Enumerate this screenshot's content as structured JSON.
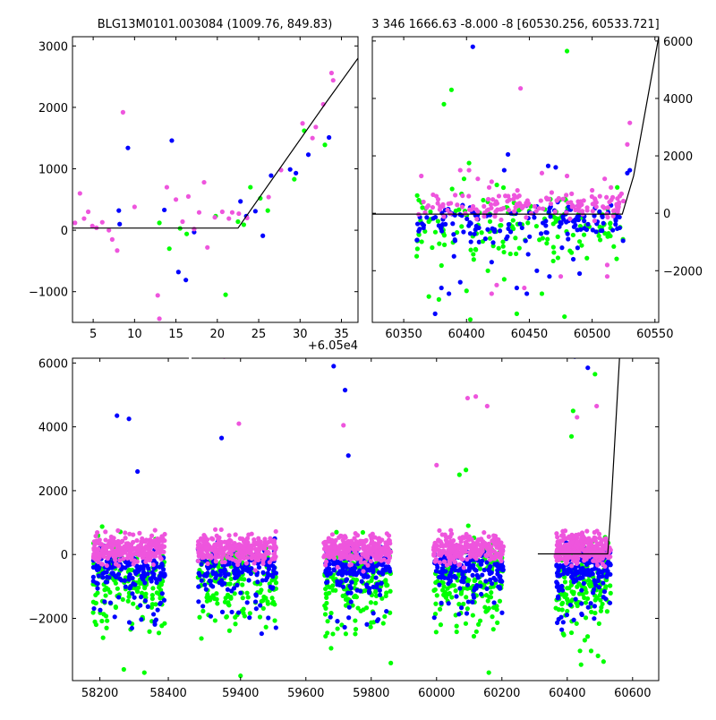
{
  "figure": {
    "title_left": "BLG13M0101.003084 (1009.76, 849.83)",
    "title_right": "3 346 1666.63 -8.000 -8 [60530.256, 60533.721]",
    "offset_label": "+6.05e4"
  },
  "colors": {
    "green": "#00ff00",
    "blue": "#0000ff",
    "magenta": "#ee55dd",
    "model_line": "#000000",
    "frame": "#000000"
  },
  "chart_data": [
    {
      "type": "scatter",
      "id": "zoom",
      "title": "BLG13M0101.003084 (1009.76, 849.83)",
      "x_offset": 60500,
      "xlim": [
        2.5,
        37
      ],
      "ylim": [
        -1500,
        3150
      ],
      "xticks": [
        5,
        10,
        15,
        20,
        25,
        30,
        35
      ],
      "yticks": [
        -1000,
        0,
        1000,
        2000,
        3000
      ],
      "series": [
        {
          "color": "green",
          "points": [
            [
              13.0,
              120
            ],
            [
              14.2,
              -300
            ],
            [
              15.5,
              30
            ],
            [
              16.3,
              -60
            ],
            [
              19.8,
              230
            ],
            [
              21.0,
              -1050
            ],
            [
              22.5,
              140
            ],
            [
              23.2,
              90
            ],
            [
              24.0,
              700
            ],
            [
              25.2,
              520
            ],
            [
              26.1,
              320
            ],
            [
              29.3,
              830
            ],
            [
              30.5,
              1620
            ],
            [
              33.0,
              1390
            ]
          ]
        },
        {
          "color": "blue",
          "points": [
            [
              8.1,
              320
            ],
            [
              8.2,
              100
            ],
            [
              9.2,
              1340
            ],
            [
              13.6,
              330
            ],
            [
              14.5,
              1460
            ],
            [
              15.3,
              -680
            ],
            [
              16.2,
              -810
            ],
            [
              17.2,
              -30
            ],
            [
              22.8,
              470
            ],
            [
              23.5,
              230
            ],
            [
              24.6,
              310
            ],
            [
              25.5,
              -90
            ],
            [
              26.5,
              890
            ],
            [
              28.8,
              990
            ],
            [
              29.5,
              930
            ],
            [
              31.0,
              1230
            ],
            [
              33.5,
              1510
            ]
          ]
        },
        {
          "color": "magenta",
          "points": [
            [
              2.8,
              120
            ],
            [
              3.4,
              600
            ],
            [
              3.9,
              190
            ],
            [
              4.4,
              300
            ],
            [
              4.9,
              70
            ],
            [
              5.4,
              40
            ],
            [
              6.1,
              130
            ],
            [
              6.9,
              0
            ],
            [
              7.3,
              -150
            ],
            [
              7.9,
              -330
            ],
            [
              8.6,
              1920
            ],
            [
              10.0,
              380
            ],
            [
              12.8,
              -1060
            ],
            [
              13.0,
              -1440
            ],
            [
              13.9,
              700
            ],
            [
              15.0,
              500
            ],
            [
              15.8,
              140
            ],
            [
              16.5,
              550
            ],
            [
              17.2,
              20
            ],
            [
              17.8,
              290
            ],
            [
              18.4,
              780
            ],
            [
              18.8,
              -280
            ],
            [
              19.7,
              210
            ],
            [
              20.6,
              300
            ],
            [
              21.4,
              190
            ],
            [
              21.8,
              290
            ],
            [
              22.6,
              270
            ],
            [
              23.6,
              200
            ],
            [
              26.2,
              540
            ],
            [
              27.7,
              980
            ],
            [
              30.3,
              1740
            ],
            [
              31.5,
              1500
            ],
            [
              31.9,
              1680
            ],
            [
              32.8,
              2050
            ],
            [
              33.8,
              2560
            ],
            [
              34.0,
              2440
            ]
          ]
        }
      ],
      "model": [
        [
          2.5,
          35
        ],
        [
          22.5,
          35
        ],
        [
          33.2,
          2090
        ],
        [
          37,
          2800
        ]
      ]
    },
    {
      "type": "scatter",
      "id": "season",
      "title": "3 346 1666.63 -8.000 -8 [60530.256, 60533.721]",
      "xlim": [
        60325,
        60553
      ],
      "ylim": [
        -3800,
        6150
      ],
      "xticks": [
        60350,
        60400,
        60450,
        60500,
        60550
      ],
      "yticks": [
        -2000,
        0,
        2000,
        4000,
        6000
      ],
      "series": [
        {
          "color": "green",
          "points": [
            [
              60382,
              3800
            ],
            [
              60388,
              4300
            ],
            [
              60398,
              1200
            ],
            [
              60402,
              1750
            ],
            [
              60405,
              -800
            ],
            [
              60370,
              -2900
            ],
            [
              60378,
              -3000
            ],
            [
              60400,
              -2700
            ],
            [
              60403,
              -3700
            ],
            [
              60440,
              -3500
            ],
            [
              60478,
              -3600
            ],
            [
              60480,
              5650
            ],
            [
              60417,
              -2000
            ],
            [
              60430,
              -2300
            ],
            [
              60460,
              -2800
            ]
          ]
        },
        {
          "color": "blue",
          "points": [
            [
              60405,
              5800
            ],
            [
              60430,
              1500
            ],
            [
              60433,
              2050
            ],
            [
              60465,
              1650
            ],
            [
              60471,
              1600
            ],
            [
              60375,
              -3500
            ],
            [
              60380,
              -2600
            ],
            [
              60386,
              -2800
            ],
            [
              60390,
              -1500
            ],
            [
              60395,
              -2400
            ],
            [
              60410,
              -1000
            ],
            [
              60420,
              -1700
            ],
            [
              60440,
              -2600
            ],
            [
              60448,
              -2800
            ],
            [
              60456,
              -2000
            ],
            [
              60466,
              -2200
            ],
            [
              60476,
              -1200
            ],
            [
              60485,
              -1600
            ],
            [
              60490,
              -2100
            ],
            [
              60528,
              1400
            ],
            [
              60530,
              1500
            ]
          ]
        },
        {
          "color": "magenta",
          "points": [
            [
              60443,
              4350
            ],
            [
              60364,
              1300
            ],
            [
              60395,
              1500
            ],
            [
              60402,
              1500
            ],
            [
              60409,
              1200
            ],
            [
              60418,
              900
            ],
            [
              60420,
              1100
            ],
            [
              60460,
              1400
            ],
            [
              60480,
              1300
            ],
            [
              60500,
              800
            ],
            [
              60510,
              1200
            ],
            [
              60515,
              900
            ],
            [
              60522,
              600
            ],
            [
              60528,
              2400
            ],
            [
              60530,
              3150
            ],
            [
              60420,
              -2800
            ],
            [
              60424,
              -2500
            ],
            [
              60446,
              -2600
            ],
            [
              60475,
              -2200
            ],
            [
              60512,
              -2200
            ],
            [
              60512,
              -1800
            ]
          ]
        }
      ],
      "model": [
        [
          60325,
          -30
        ],
        [
          60524,
          -30
        ],
        [
          60533,
          1300
        ],
        [
          60553,
          6150
        ]
      ]
    },
    {
      "type": "scatter",
      "id": "full",
      "xlim": [
        58120,
        60680
      ],
      "xlim_display_note": "broken x axis",
      "ylim": [
        -3950,
        6150
      ],
      "xticks": [
        58200,
        58400,
        59400,
        59600,
        59800,
        60000,
        60200,
        60400,
        60600
      ],
      "yticks": [
        -2000,
        0,
        2000,
        4000,
        6000
      ],
      "seasons": [
        {
          "from": 58180,
          "to": 58390
        },
        {
          "from": 59270,
          "to": 59510
        },
        {
          "from": 59655,
          "to": 59860
        },
        {
          "from": 59990,
          "to": 60205
        },
        {
          "from": 60365,
          "to": 60533
        }
      ],
      "highlights": [
        {
          "color": "blue",
          "points": [
            [
              58250,
              4350
            ],
            [
              58285,
              4250
            ],
            [
              58310,
              2600
            ],
            [
              59342,
              3650
            ],
            [
              59685,
              5900
            ],
            [
              59720,
              5150
            ],
            [
              59730,
              3100
            ],
            [
              60423,
              6200
            ],
            [
              60463,
              5850
            ]
          ]
        },
        {
          "color": "magenta",
          "points": [
            [
              59350,
              6200
            ],
            [
              59395,
              4100
            ],
            [
              59715,
              4050
            ],
            [
              60000,
              2800
            ],
            [
              60095,
              4900
            ],
            [
              60120,
              4950
            ],
            [
              60155,
              4650
            ],
            [
              60430,
              4300
            ],
            [
              60490,
              4650
            ]
          ]
        },
        {
          "color": "green",
          "points": [
            [
              60413,
              3700
            ],
            [
              60418,
              4500
            ],
            [
              60485,
              5650
            ],
            [
              60070,
              2500
            ],
            [
              60090,
              2650
            ],
            [
              59860,
              -3400
            ],
            [
              59400,
              -3800
            ],
            [
              58270,
              -3600
            ],
            [
              58330,
              -3700
            ],
            [
              60160,
              -3700
            ]
          ]
        }
      ],
      "model": [
        [
          60310,
          20
        ],
        [
          60524,
          20
        ],
        [
          60533,
          1300
        ],
        [
          60560,
          6150
        ]
      ]
    }
  ]
}
